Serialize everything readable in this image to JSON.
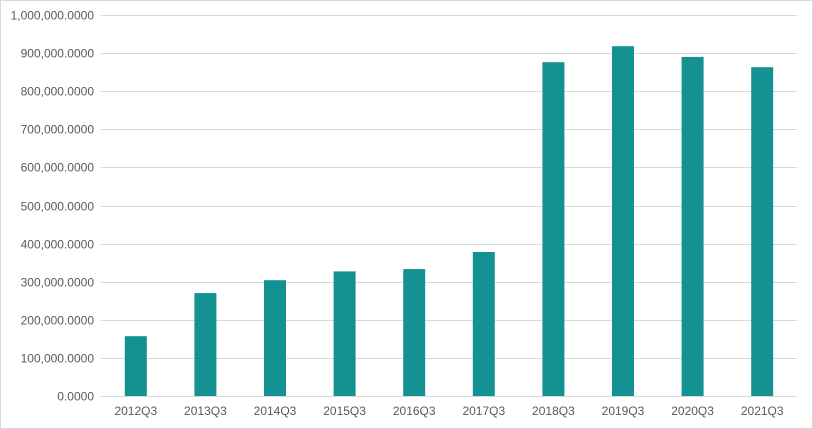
{
  "chart_data": {
    "type": "bar",
    "title": "",
    "xlabel": "",
    "ylabel": "",
    "categories": [
      "2012Q3",
      "2013Q3",
      "2014Q3",
      "2015Q3",
      "2016Q3",
      "2017Q3",
      "2018Q3",
      "2019Q3",
      "2020Q3",
      "2021Q3"
    ],
    "values": [
      157000,
      270000,
      304000,
      327000,
      333000,
      378000,
      876000,
      918000,
      890000,
      863000
    ],
    "ylim": [
      0,
      1000000
    ],
    "yticks": [
      0,
      100000,
      200000,
      300000,
      400000,
      500000,
      600000,
      700000,
      800000,
      900000,
      1000000
    ],
    "ytick_labels": [
      "0.0000",
      "100,000.0000",
      "200,000.0000",
      "300,000.0000",
      "400,000.0000",
      "500,000.0000",
      "600,000.0000",
      "700,000.0000",
      "800,000.0000",
      "900,000.0000",
      "1,000,000.0000"
    ],
    "grid": true,
    "legend": "none",
    "bar_color": "#149293",
    "grid_color": "#d9d9d9"
  }
}
